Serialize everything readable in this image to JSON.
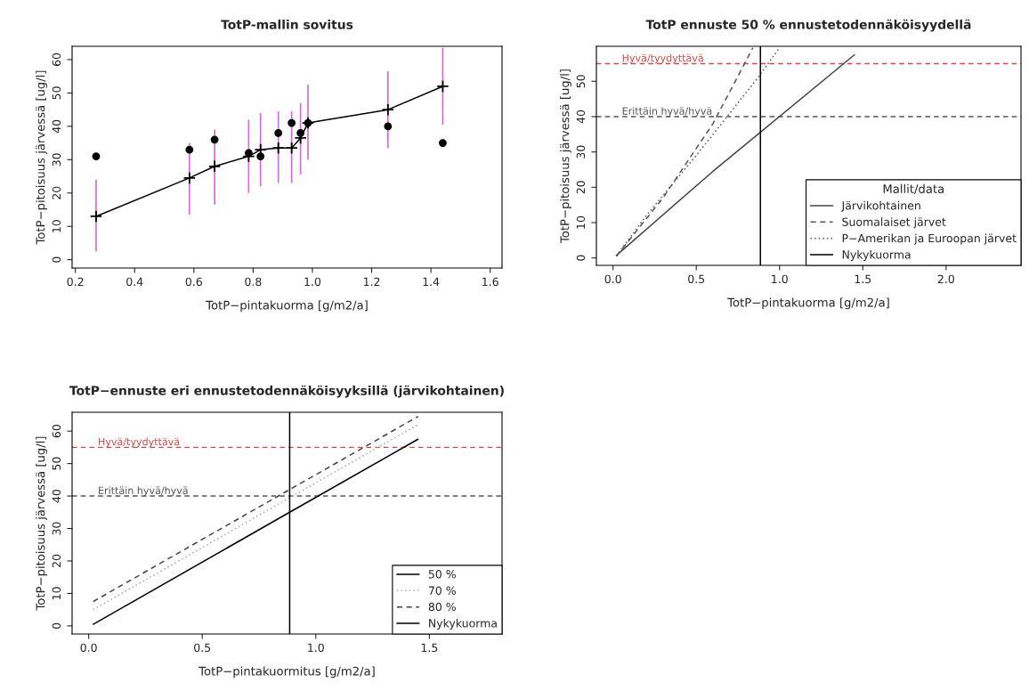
{
  "chart_data": [
    {
      "type": "line",
      "title": "TotP-mallin sovitus",
      "xlabel": "TotP−pintakuorma [g/m2/a]",
      "ylabel": "TotP−pitoisuus järvessä [ug/l]",
      "xlim": [
        0.189,
        1.64
      ],
      "xticks": [
        0.2,
        0.4,
        0.6,
        0.8,
        {
          "value": 1,
          "label": "1.0"
        },
        1.2,
        1.4,
        1.6
      ],
      "ylim": [
        -2.5,
        64
      ],
      "yticks": [
        0,
        10,
        20,
        30,
        40,
        50,
        60
      ],
      "grid": false,
      "x": [
        0.27,
        0.585,
        0.67,
        0.785,
        0.825,
        0.885,
        0.93,
        0.96,
        0.985,
        1.255,
        1.44
      ],
      "series": [
        {
          "type": "scatter",
          "color": "#000000",
          "marker": "circle",
          "values": [
            31,
            33,
            36,
            32,
            31,
            38,
            41,
            38,
            41,
            40,
            35
          ]
        },
        {
          "type": "line",
          "color": "#000000",
          "marker": "cross",
          "line_style": "solid",
          "values": [
            13,
            24.5,
            28,
            31,
            33,
            33.5,
            33.5,
            36.5,
            41,
            45,
            52
          ],
          "errors": [
            [
              2.5,
              24
            ],
            [
              13.5,
              35
            ],
            [
              16.5,
              39
            ],
            [
              20,
              42
            ],
            [
              22,
              44
            ],
            [
              23,
              44.5
            ],
            [
              23,
              44.5
            ],
            [
              25.5,
              47
            ],
            [
              30,
              52.5
            ],
            [
              33.5,
              56.5
            ],
            [
              40.5,
              63.5
            ]
          ]
        }
      ]
    },
    {
      "type": "line",
      "title": "TotP ennuste 50 % ennustetodennäköisyydellä",
      "xlabel": "TotP−pintakuorma [g/m2/a]",
      "ylabel": "TotP−pitoisuus järvessä [ug/l]",
      "xlim": [
        -0.1,
        2.45
      ],
      "xticks": [
        {
          "value": 0,
          "label": "0.0"
        },
        0.5,
        {
          "value": 1,
          "label": "1.0"
        },
        1.5,
        {
          "value": 2,
          "label": "2.0"
        }
      ],
      "ylim": [
        -2.1,
        59.9
      ],
      "yticks": [
        0,
        10,
        20,
        30,
        40,
        50
      ],
      "grid": false,
      "legend": "bottom right",
      "legend_title": "Mallit/data",
      "series": [
        {
          "name": "Järvikohtainen",
          "color": "#444444",
          "line_style": "solid",
          "x": [
            0.02,
            0.6,
            1.45
          ],
          "values": [
            0.7,
            24.5,
            57.5
          ]
        },
        {
          "name": "Suomalaiset järvet",
          "color": "#555555",
          "line_style": "dashed",
          "x": [
            0.02,
            0.3,
            0.6,
            0.84
          ],
          "values": [
            0.5,
            17,
            38,
            59.5
          ]
        },
        {
          "name": "P−Amerikan ja Euroopan järvet",
          "color": "#555555",
          "line_style": "dotted",
          "x": [
            0.02,
            0.2,
            0.5,
            0.87,
            0.9,
            1.0
          ],
          "values": [
            0.5,
            12,
            29,
            51,
            53,
            59.5
          ]
        },
        {
          "name": "Nykykuorma",
          "color": "#000000",
          "line_style": "solid",
          "x": [
            0.885,
            0.885
          ],
          "values": [
            -2.1,
            59.9
          ]
        }
      ],
      "ref_lines": [
        {
          "axis": "y",
          "value": 55,
          "label": "Hyvä/tyydyttävä",
          "color": "#dd4444",
          "line_style": "dashed"
        },
        {
          "axis": "y",
          "value": 40,
          "label": "Erittäin hyvä/hyvä",
          "color": "#555555",
          "line_style": "dashed"
        }
      ]
    },
    {
      "type": "line",
      "title": "TotP−ennuste eri ennustetodennäköisyyksillä (järvikohtainen)",
      "xlabel": "TotP−pintakuormitus [g/m2/a]",
      "ylabel": "TotP−pitoisuus järvessä [ug/l]",
      "xlim": [
        -0.073,
        1.82
      ],
      "xticks": [
        {
          "value": 0,
          "label": "0.0"
        },
        0.5,
        {
          "value": 1,
          "label": "1.0"
        },
        1.5
      ],
      "ylim": [
        -2.5,
        65.8
      ],
      "yticks": [
        0,
        10,
        20,
        30,
        40,
        50,
        60
      ],
      "grid": false,
      "legend": "bottom right",
      "x": [
        0.02,
        0.885,
        1.45
      ],
      "series": [
        {
          "name": "50 %",
          "color": "#000000",
          "line_style": "solid",
          "values": [
            0.5,
            35,
            57.5
          ]
        },
        {
          "name": "70 %",
          "color": "#aaaaaa",
          "line_style": "dotted",
          "values": [
            5,
            39.5,
            62
          ]
        },
        {
          "name": "80 %",
          "color": "#444444",
          "line_style": "dashed",
          "values": [
            7.5,
            42,
            64.5
          ]
        },
        {
          "name": "Nykykuorma",
          "color": "#000000",
          "line_style": "solid",
          "x": [
            0.885,
            0.885
          ],
          "values": [
            -2.5,
            65.8
          ]
        }
      ],
      "ref_lines": [
        {
          "axis": "y",
          "value": 55,
          "label": "Hyvä/tyydyttävä",
          "color": "#dd4444",
          "line_style": "dashed"
        },
        {
          "axis": "y",
          "value": 40,
          "label": "Erittäin hyvä/hyvä",
          "color": "#555555",
          "line_style": "dashed"
        }
      ]
    }
  ]
}
